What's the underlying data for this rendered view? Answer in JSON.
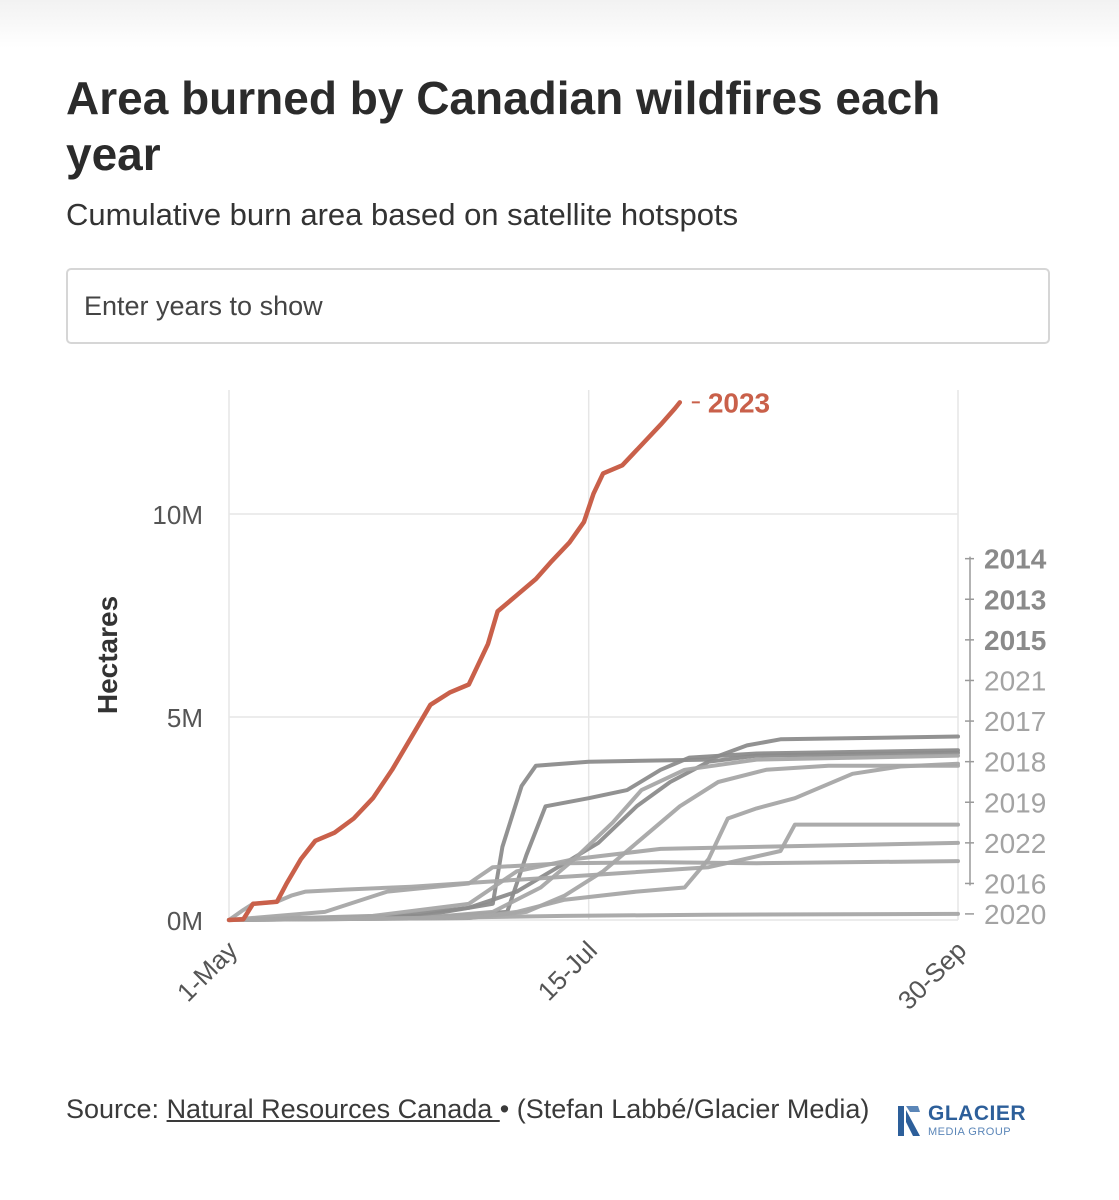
{
  "header": {
    "title": "Area burned by Canadian wildfires each year",
    "subtitle": "Cumulative burn area based on satellite hotspots"
  },
  "search": {
    "placeholder": "Enter years to show"
  },
  "chart_data": {
    "type": "line",
    "title": "Area burned by Canadian wildfires each year",
    "subtitle": "Cumulative burn area based on satellite hotspots",
    "xlabel": "",
    "ylabel": "Hectares",
    "x_domain_days": [
      0,
      152
    ],
    "x_ticks": [
      {
        "day": 0,
        "label": "1-May"
      },
      {
        "day": 75,
        "label": "15-Jul"
      },
      {
        "day": 152,
        "label": "30-Sep"
      }
    ],
    "ylim": [
      0,
      13000000
    ],
    "y_ticks": [
      {
        "value": 0,
        "label": "0M"
      },
      {
        "value": 5000000,
        "label": "5M"
      },
      {
        "value": 10000000,
        "label": "10M"
      }
    ],
    "grid": true,
    "colors": {
      "highlight": "#c9604a",
      "default": "#a6a6a6",
      "dark": "#8c8c8c"
    },
    "series": [
      {
        "name": "2023",
        "highlight": true,
        "label_value": 12750000,
        "points": [
          [
            0,
            0
          ],
          [
            3,
            20000
          ],
          [
            5,
            400000
          ],
          [
            10,
            450000
          ],
          [
            12,
            900000
          ],
          [
            15,
            1500000
          ],
          [
            18,
            1950000
          ],
          [
            22,
            2150000
          ],
          [
            26,
            2500000
          ],
          [
            30,
            3000000
          ],
          [
            34,
            3700000
          ],
          [
            38,
            4500000
          ],
          [
            42,
            5300000
          ],
          [
            46,
            5600000
          ],
          [
            50,
            5800000
          ],
          [
            54,
            6800000
          ],
          [
            56,
            7600000
          ],
          [
            60,
            8000000
          ],
          [
            64,
            8400000
          ],
          [
            67,
            8800000
          ],
          [
            71,
            9300000
          ],
          [
            74,
            9800000
          ],
          [
            76,
            10500000
          ],
          [
            78,
            11000000
          ],
          [
            82,
            11200000
          ],
          [
            86,
            11700000
          ],
          [
            90,
            12200000
          ],
          [
            93,
            12600000
          ],
          [
            94,
            12750000
          ]
        ]
      },
      {
        "name": "2014",
        "label_value": 8900000,
        "points": [
          [
            0,
            0
          ],
          [
            40,
            100000
          ],
          [
            55,
            400000
          ],
          [
            57,
            1800000
          ],
          [
            61,
            3300000
          ],
          [
            64,
            3800000
          ],
          [
            75,
            3900000
          ],
          [
            100,
            3950000
          ],
          [
            108,
            4300000
          ],
          [
            115,
            4450000
          ],
          [
            152,
            4520000
          ]
        ]
      },
      {
        "name": "2013",
        "label_value": 7900000,
        "points": [
          [
            0,
            0
          ],
          [
            40,
            50000
          ],
          [
            58,
            200000
          ],
          [
            62,
            1600000
          ],
          [
            66,
            2800000
          ],
          [
            75,
            3000000
          ],
          [
            83,
            3200000
          ],
          [
            90,
            3700000
          ],
          [
            96,
            4000000
          ],
          [
            110,
            4100000
          ],
          [
            152,
            4180000
          ]
        ]
      },
      {
        "name": "2015",
        "label_value": 6900000,
        "points": [
          [
            0,
            0
          ],
          [
            35,
            100000
          ],
          [
            50,
            300000
          ],
          [
            60,
            700000
          ],
          [
            70,
            1400000
          ],
          [
            77,
            1900000
          ],
          [
            85,
            2800000
          ],
          [
            92,
            3400000
          ],
          [
            100,
            3900000
          ],
          [
            110,
            4050000
          ],
          [
            152,
            4120000
          ]
        ]
      },
      {
        "name": "2021",
        "label_value": 5900000,
        "points": [
          [
            0,
            0
          ],
          [
            40,
            50000
          ],
          [
            55,
            200000
          ],
          [
            65,
            800000
          ],
          [
            72,
            1500000
          ],
          [
            80,
            2400000
          ],
          [
            86,
            3200000
          ],
          [
            95,
            3700000
          ],
          [
            110,
            3950000
          ],
          [
            152,
            4050000
          ]
        ]
      },
      {
        "name": "2017",
        "label_value": 4900000,
        "points": [
          [
            0,
            0
          ],
          [
            50,
            50000
          ],
          [
            62,
            200000
          ],
          [
            70,
            600000
          ],
          [
            78,
            1200000
          ],
          [
            86,
            2000000
          ],
          [
            94,
            2800000
          ],
          [
            102,
            3400000
          ],
          [
            112,
            3700000
          ],
          [
            125,
            3800000
          ],
          [
            152,
            3800000
          ]
        ]
      },
      {
        "name": "2018",
        "label_value": 3900000,
        "points": [
          [
            0,
            0
          ],
          [
            50,
            50000
          ],
          [
            60,
            200000
          ],
          [
            70,
            500000
          ],
          [
            85,
            700000
          ],
          [
            95,
            800000
          ],
          [
            100,
            1500000
          ],
          [
            104,
            2500000
          ],
          [
            110,
            2750000
          ],
          [
            118,
            3000000
          ],
          [
            130,
            3600000
          ],
          [
            140,
            3780000
          ],
          [
            152,
            3850000
          ]
        ]
      },
      {
        "name": "2019",
        "label_value": 2900000,
        "points": [
          [
            0,
            0
          ],
          [
            3,
            250000
          ],
          [
            5,
            400000
          ],
          [
            10,
            450000
          ],
          [
            13,
            600000
          ],
          [
            16,
            700000
          ],
          [
            24,
            750000
          ],
          [
            38,
            820000
          ],
          [
            55,
            950000
          ],
          [
            75,
            1100000
          ],
          [
            100,
            1300000
          ],
          [
            115,
            1700000
          ],
          [
            118,
            2350000
          ],
          [
            152,
            2350000
          ]
        ]
      },
      {
        "name": "2022",
        "label_value": 1900000,
        "points": [
          [
            0,
            0
          ],
          [
            30,
            100000
          ],
          [
            50,
            400000
          ],
          [
            60,
            1200000
          ],
          [
            72,
            1500000
          ],
          [
            90,
            1750000
          ],
          [
            110,
            1800000
          ],
          [
            152,
            1900000
          ]
        ]
      },
      {
        "name": "2016",
        "label_value": 900000,
        "points": [
          [
            0,
            0
          ],
          [
            20,
            200000
          ],
          [
            33,
            700000
          ],
          [
            50,
            900000
          ],
          [
            55,
            1300000
          ],
          [
            70,
            1400000
          ],
          [
            90,
            1420000
          ],
          [
            110,
            1400000
          ],
          [
            152,
            1450000
          ]
        ]
      },
      {
        "name": "2020",
        "label_value": 150000,
        "points": [
          [
            0,
            0
          ],
          [
            30,
            30000
          ],
          [
            70,
            100000
          ],
          [
            100,
            130000
          ],
          [
            152,
            150000
          ]
        ]
      }
    ]
  },
  "footer": {
    "source_prefix": "Source: ",
    "source_link": "Natural Resources Canada ",
    "source_suffix": " • (Stefan Labbé/Glacier Media)"
  },
  "logo": {
    "line1": "GLACIER",
    "line2": "MEDIA GROUP"
  }
}
